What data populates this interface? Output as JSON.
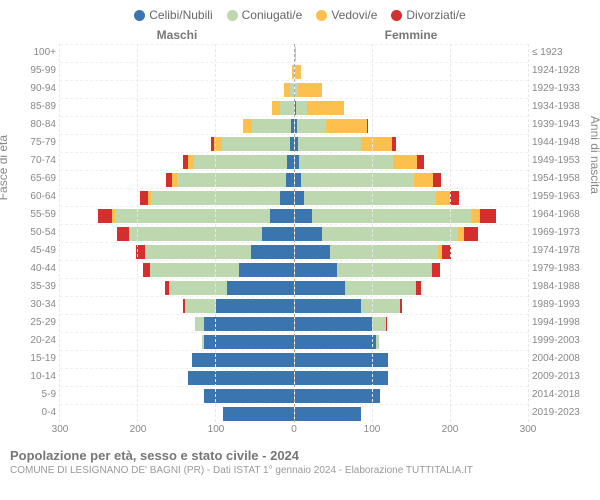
{
  "chart": {
    "type": "population-pyramid",
    "legend": [
      {
        "label": "Celibi/Nubili",
        "color": "#3b75af"
      },
      {
        "label": "Coniugati/e",
        "color": "#bdd7ae"
      },
      {
        "label": "Vedovi/e",
        "color": "#fdc04e"
      },
      {
        "label": "Divorziati/e",
        "color": "#d32f2f"
      }
    ],
    "males_label": "Maschi",
    "females_label": "Femmine",
    "y_left_title": "Fasce di età",
    "y_right_title": "Anni di nascita",
    "x_max": 300,
    "x_ticks": [
      300,
      200,
      100,
      0,
      100,
      200,
      300
    ],
    "background_color": "#ffffff",
    "grid_color": "#e8e8e8",
    "age_groups": [
      {
        "age": "100+",
        "birth": "≤ 1923",
        "m": [
          0,
          0,
          0,
          0
        ],
        "f": [
          0,
          0,
          2,
          0
        ]
      },
      {
        "age": "95-99",
        "birth": "1924-1928",
        "m": [
          0,
          0,
          2,
          0
        ],
        "f": [
          0,
          0,
          8,
          0
        ]
      },
      {
        "age": "90-94",
        "birth": "1929-1933",
        "m": [
          0,
          4,
          8,
          0
        ],
        "f": [
          1,
          4,
          30,
          0
        ]
      },
      {
        "age": "85-89",
        "birth": "1934-1938",
        "m": [
          0,
          18,
          10,
          0
        ],
        "f": [
          2,
          14,
          48,
          0
        ]
      },
      {
        "age": "80-84",
        "birth": "1939-1943",
        "m": [
          3,
          50,
          12,
          0
        ],
        "f": [
          3,
          38,
          52,
          2
        ]
      },
      {
        "age": "75-79",
        "birth": "1944-1948",
        "m": [
          4,
          88,
          10,
          4
        ],
        "f": [
          5,
          80,
          40,
          5
        ]
      },
      {
        "age": "70-74",
        "birth": "1949-1953",
        "m": [
          8,
          120,
          8,
          6
        ],
        "f": [
          6,
          120,
          32,
          8
        ]
      },
      {
        "age": "65-69",
        "birth": "1954-1958",
        "m": [
          10,
          140,
          6,
          8
        ],
        "f": [
          8,
          145,
          25,
          10
        ]
      },
      {
        "age": "60-64",
        "birth": "1959-1963",
        "m": [
          18,
          165,
          4,
          10
        ],
        "f": [
          12,
          170,
          18,
          12
        ]
      },
      {
        "age": "55-59",
        "birth": "1964-1968",
        "m": [
          30,
          200,
          3,
          18
        ],
        "f": [
          22,
          205,
          12,
          20
        ]
      },
      {
        "age": "50-54",
        "birth": "1969-1973",
        "m": [
          40,
          170,
          2,
          15
        ],
        "f": [
          35,
          175,
          8,
          18
        ]
      },
      {
        "age": "45-49",
        "birth": "1974-1978",
        "m": [
          55,
          135,
          1,
          12
        ],
        "f": [
          45,
          140,
          4,
          12
        ]
      },
      {
        "age": "40-44",
        "birth": "1979-1983",
        "m": [
          70,
          115,
          0,
          8
        ],
        "f": [
          55,
          120,
          2,
          10
        ]
      },
      {
        "age": "35-39",
        "birth": "1984-1988",
        "m": [
          85,
          75,
          0,
          5
        ],
        "f": [
          65,
          90,
          1,
          6
        ]
      },
      {
        "age": "30-34",
        "birth": "1989-1993",
        "m": [
          100,
          40,
          0,
          2
        ],
        "f": [
          85,
          50,
          0,
          3
        ]
      },
      {
        "age": "25-29",
        "birth": "1994-1998",
        "m": [
          115,
          12,
          0,
          0
        ],
        "f": [
          100,
          18,
          0,
          1
        ]
      },
      {
        "age": "20-24",
        "birth": "1999-2003",
        "m": [
          115,
          2,
          0,
          0
        ],
        "f": [
          105,
          3,
          0,
          0
        ]
      },
      {
        "age": "15-19",
        "birth": "2004-2008",
        "m": [
          130,
          0,
          0,
          0
        ],
        "f": [
          120,
          0,
          0,
          0
        ]
      },
      {
        "age": "10-14",
        "birth": "2009-2013",
        "m": [
          135,
          0,
          0,
          0
        ],
        "f": [
          120,
          0,
          0,
          0
        ]
      },
      {
        "age": "5-9",
        "birth": "2014-2018",
        "m": [
          115,
          0,
          0,
          0
        ],
        "f": [
          110,
          0,
          0,
          0
        ]
      },
      {
        "age": "0-4",
        "birth": "2019-2023",
        "m": [
          90,
          0,
          0,
          0
        ],
        "f": [
          85,
          0,
          0,
          0
        ]
      }
    ],
    "footer_title": "Popolazione per età, sesso e stato civile - 2024",
    "footer_sub": "COMUNE DI LESIGNANO DE' BAGNI (PR) - Dati ISTAT 1° gennaio 2024 - Elaborazione TUTTITALIA.IT"
  }
}
